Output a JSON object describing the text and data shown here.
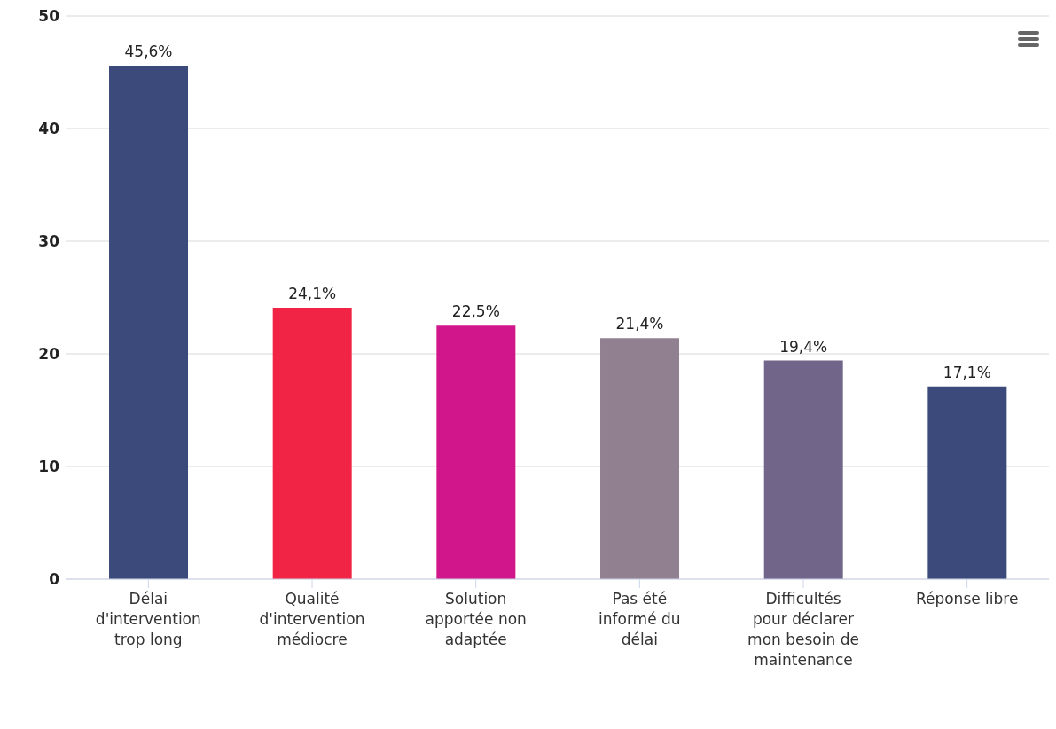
{
  "chart_data": {
    "type": "bar",
    "categories": [
      "Délai d'intervention trop long",
      "Qualité d'intervention médiocre",
      "Solution apportée non adaptée",
      "Pas été informé du délai",
      "Difficultés pour déclarer mon besoin de maintenance",
      "Réponse libre"
    ],
    "values": [
      45.6,
      24.1,
      22.5,
      21.4,
      19.4,
      17.1
    ],
    "colors": [
      "#3b4a7a",
      "#f22446",
      "#d0168a",
      "#91808f",
      "#71668a",
      "#3b4a7a"
    ],
    "value_labels": [
      "45,6%",
      "24,1%",
      "22,5%",
      "21,4%",
      "19,4%",
      "17,1%"
    ],
    "ylim": [
      0,
      50
    ],
    "yticks": [
      0,
      10,
      20,
      30,
      40,
      50
    ],
    "grid": "y"
  }
}
